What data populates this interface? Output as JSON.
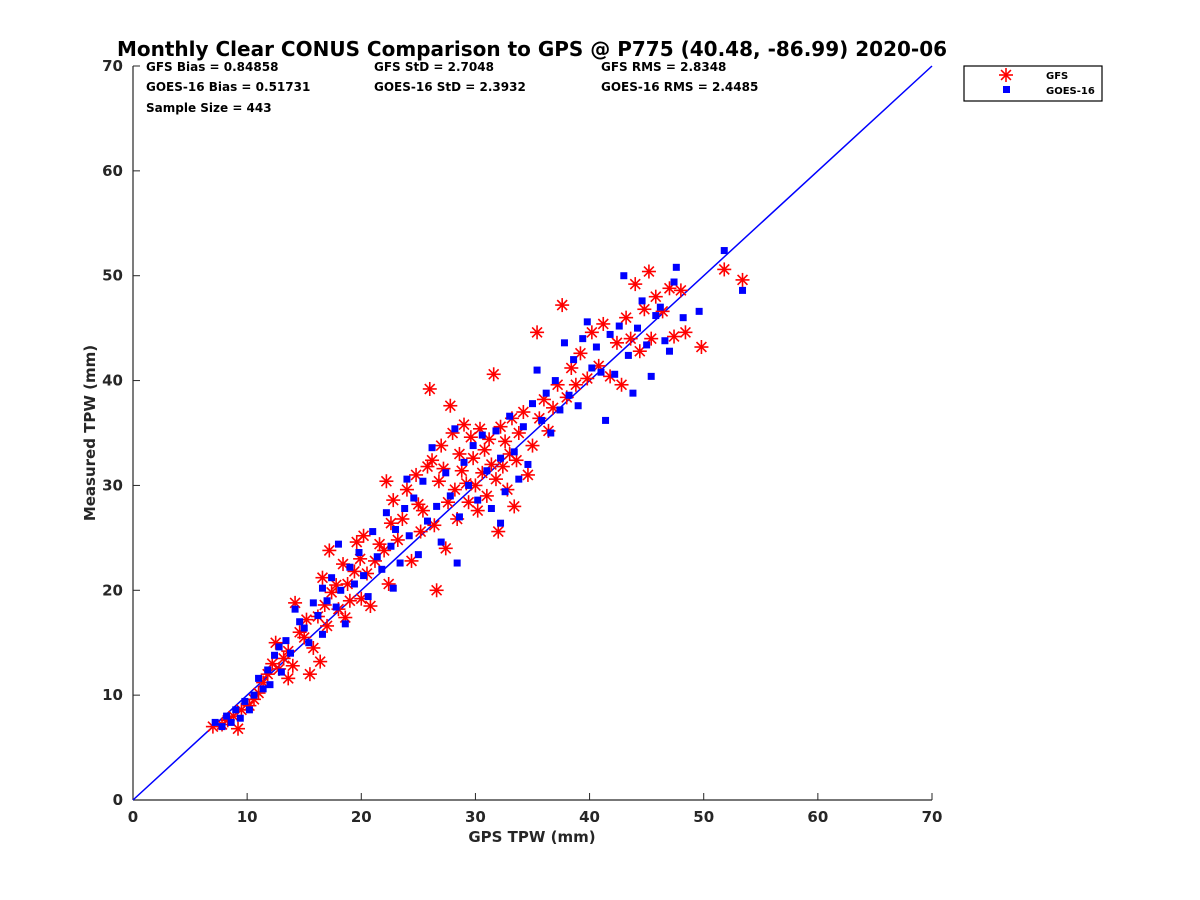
{
  "chart_data": {
    "type": "scatter",
    "title": "Monthly Clear CONUS Comparison to GPS @ P775 (40.48, -86.99) 2020-06",
    "xlabel": "GPS TPW (mm)",
    "ylabel": "Measured TPW (mm)",
    "xlim": [
      0,
      70
    ],
    "ylim": [
      0,
      70
    ],
    "xticks": [
      0,
      10,
      20,
      30,
      40,
      50,
      60,
      70
    ],
    "yticks": [
      0,
      10,
      20,
      30,
      40,
      50,
      60,
      70
    ],
    "grid": false,
    "legend_position": "top-right, outside plot",
    "stats": [
      {
        "label": "GFS Bias = 0.84858"
      },
      {
        "label": "GFS StD = 2.7048"
      },
      {
        "label": "GFS RMS = 2.8348"
      },
      {
        "label": "GOES-16 Bias = 0.51731"
      },
      {
        "label": "GOES-16 StD = 2.3932"
      },
      {
        "label": "GOES-16 RMS = 2.4485"
      },
      {
        "label": "Sample Size = 443"
      }
    ],
    "reference_line": {
      "x": [
        0,
        70
      ],
      "y": [
        0,
        70
      ],
      "color": "#0000ff"
    },
    "series": [
      {
        "name": "GFS",
        "marker": "asterisk",
        "color": "#ff0000",
        "points": [
          [
            7.0,
            7.0
          ],
          [
            7.8,
            7.2
          ],
          [
            8.3,
            7.6
          ],
          [
            8.8,
            8.0
          ],
          [
            9.2,
            6.8
          ],
          [
            9.5,
            8.6
          ],
          [
            10.2,
            9.0
          ],
          [
            10.6,
            9.6
          ],
          [
            11.0,
            10.2
          ],
          [
            11.4,
            11.2
          ],
          [
            11.8,
            12.0
          ],
          [
            12.2,
            13.0
          ],
          [
            12.5,
            15.0
          ],
          [
            12.8,
            12.5
          ],
          [
            13.2,
            13.5
          ],
          [
            13.6,
            14.2
          ],
          [
            14.0,
            12.8
          ],
          [
            14.2,
            18.8
          ],
          [
            14.6,
            16.0
          ],
          [
            15.0,
            15.5
          ],
          [
            15.2,
            17.2
          ],
          [
            15.5,
            12.0
          ],
          [
            15.8,
            14.5
          ],
          [
            16.2,
            17.5
          ],
          [
            16.6,
            21.2
          ],
          [
            16.8,
            18.6
          ],
          [
            17.0,
            16.6
          ],
          [
            17.4,
            19.8
          ],
          [
            17.8,
            20.5
          ],
          [
            18.0,
            18.2
          ],
          [
            18.4,
            22.5
          ],
          [
            18.8,
            20.6
          ],
          [
            19.0,
            19.0
          ],
          [
            19.4,
            21.8
          ],
          [
            19.6,
            24.6
          ],
          [
            19.9,
            23.0
          ],
          [
            20.2,
            25.2
          ],
          [
            20.5,
            21.6
          ],
          [
            20.8,
            18.5
          ],
          [
            21.2,
            22.8
          ],
          [
            21.6,
            24.4
          ],
          [
            22.0,
            23.8
          ],
          [
            22.4,
            20.6
          ],
          [
            22.6,
            26.4
          ],
          [
            22.8,
            28.6
          ],
          [
            23.2,
            24.8
          ],
          [
            23.6,
            26.8
          ],
          [
            24.0,
            29.6
          ],
          [
            24.4,
            22.8
          ],
          [
            24.8,
            31.0
          ],
          [
            25.0,
            28.2
          ],
          [
            25.2,
            25.6
          ],
          [
            25.4,
            27.6
          ],
          [
            25.8,
            31.8
          ],
          [
            26.0,
            39.2
          ],
          [
            26.2,
            32.4
          ],
          [
            26.4,
            26.2
          ],
          [
            26.6,
            20.0
          ],
          [
            26.8,
            30.4
          ],
          [
            27.0,
            33.8
          ],
          [
            27.2,
            31.6
          ],
          [
            27.4,
            24.0
          ],
          [
            27.6,
            28.4
          ],
          [
            27.8,
            37.6
          ],
          [
            28.0,
            35.0
          ],
          [
            28.2,
            29.6
          ],
          [
            28.4,
            26.8
          ],
          [
            28.6,
            33.0
          ],
          [
            28.8,
            31.4
          ],
          [
            29.0,
            35.8
          ],
          [
            29.2,
            30.2
          ],
          [
            29.4,
            28.4
          ],
          [
            29.6,
            34.6
          ],
          [
            29.8,
            32.6
          ],
          [
            30.0,
            30.0
          ],
          [
            30.2,
            27.6
          ],
          [
            30.4,
            35.4
          ],
          [
            30.6,
            31.2
          ],
          [
            30.8,
            33.4
          ],
          [
            31.0,
            29.0
          ],
          [
            31.2,
            34.4
          ],
          [
            31.4,
            32.0
          ],
          [
            31.6,
            40.6
          ],
          [
            31.8,
            30.6
          ],
          [
            32.0,
            25.6
          ],
          [
            32.2,
            35.6
          ],
          [
            32.4,
            31.8
          ],
          [
            32.6,
            34.2
          ],
          [
            32.8,
            29.6
          ],
          [
            33.0,
            33.0
          ],
          [
            33.2,
            36.4
          ],
          [
            33.4,
            28.0
          ],
          [
            33.6,
            32.4
          ],
          [
            33.8,
            35.0
          ],
          [
            34.2,
            37.0
          ],
          [
            34.6,
            31.0
          ],
          [
            35.0,
            33.8
          ],
          [
            35.4,
            44.6
          ],
          [
            35.6,
            36.4
          ],
          [
            36.0,
            38.2
          ],
          [
            36.4,
            35.2
          ],
          [
            36.8,
            37.4
          ],
          [
            37.2,
            39.6
          ],
          [
            37.6,
            47.2
          ],
          [
            38.0,
            38.4
          ],
          [
            38.4,
            41.2
          ],
          [
            38.8,
            39.6
          ],
          [
            39.2,
            42.6
          ],
          [
            39.8,
            40.2
          ],
          [
            40.2,
            44.6
          ],
          [
            40.8,
            41.4
          ],
          [
            41.2,
            45.4
          ],
          [
            41.8,
            40.4
          ],
          [
            42.4,
            43.6
          ],
          [
            42.8,
            39.6
          ],
          [
            43.2,
            46.0
          ],
          [
            43.6,
            44.0
          ],
          [
            44.0,
            49.2
          ],
          [
            44.4,
            42.8
          ],
          [
            44.8,
            46.8
          ],
          [
            45.2,
            50.4
          ],
          [
            45.4,
            44.0
          ],
          [
            45.8,
            48.0
          ],
          [
            46.4,
            46.6
          ],
          [
            47.0,
            48.8
          ],
          [
            47.4,
            44.2
          ],
          [
            48.0,
            48.6
          ],
          [
            48.4,
            44.6
          ],
          [
            49.8,
            43.2
          ],
          [
            51.8,
            50.6
          ],
          [
            53.4,
            49.6
          ],
          [
            22.2,
            30.4
          ],
          [
            20.0,
            19.2
          ],
          [
            17.2,
            23.8
          ],
          [
            18.6,
            17.4
          ],
          [
            13.6,
            11.6
          ],
          [
            16.4,
            13.2
          ]
        ]
      },
      {
        "name": "GOES-16",
        "marker": "square",
        "color": "#0000ff",
        "points": [
          [
            7.2,
            7.4
          ],
          [
            7.8,
            7.0
          ],
          [
            8.2,
            8.0
          ],
          [
            8.6,
            7.4
          ],
          [
            9.0,
            8.6
          ],
          [
            9.4,
            7.8
          ],
          [
            9.8,
            9.4
          ],
          [
            10.2,
            8.6
          ],
          [
            10.6,
            10.0
          ],
          [
            11.0,
            11.6
          ],
          [
            11.4,
            10.6
          ],
          [
            11.8,
            12.4
          ],
          [
            12.0,
            11.0
          ],
          [
            12.4,
            13.8
          ],
          [
            12.8,
            14.6
          ],
          [
            13.0,
            12.2
          ],
          [
            13.4,
            15.2
          ],
          [
            13.8,
            14.0
          ],
          [
            14.2,
            18.2
          ],
          [
            14.6,
            17.0
          ],
          [
            15.0,
            16.4
          ],
          [
            15.4,
            15.0
          ],
          [
            15.8,
            18.8
          ],
          [
            16.2,
            17.6
          ],
          [
            16.6,
            20.2
          ],
          [
            17.0,
            19.0
          ],
          [
            17.4,
            21.2
          ],
          [
            17.8,
            18.4
          ],
          [
            18.2,
            20.0
          ],
          [
            18.6,
            16.8
          ],
          [
            19.0,
            22.2
          ],
          [
            19.4,
            20.6
          ],
          [
            19.8,
            23.6
          ],
          [
            20.2,
            21.4
          ],
          [
            20.6,
            19.4
          ],
          [
            21.0,
            25.6
          ],
          [
            21.4,
            23.2
          ],
          [
            21.8,
            22.0
          ],
          [
            22.2,
            27.4
          ],
          [
            22.6,
            24.2
          ],
          [
            23.0,
            25.8
          ],
          [
            23.4,
            22.6
          ],
          [
            23.8,
            27.8
          ],
          [
            24.2,
            25.2
          ],
          [
            24.6,
            28.8
          ],
          [
            25.0,
            23.4
          ],
          [
            25.4,
            30.4
          ],
          [
            25.8,
            26.6
          ],
          [
            26.2,
            33.6
          ],
          [
            26.6,
            28.0
          ],
          [
            27.0,
            24.6
          ],
          [
            27.4,
            31.2
          ],
          [
            27.8,
            29.0
          ],
          [
            28.2,
            35.4
          ],
          [
            28.6,
            27.0
          ],
          [
            29.0,
            32.2
          ],
          [
            29.4,
            30.0
          ],
          [
            29.8,
            33.8
          ],
          [
            30.2,
            28.6
          ],
          [
            30.6,
            34.8
          ],
          [
            31.0,
            31.4
          ],
          [
            31.4,
            27.8
          ],
          [
            31.8,
            35.2
          ],
          [
            32.2,
            32.6
          ],
          [
            32.6,
            29.4
          ],
          [
            33.0,
            36.6
          ],
          [
            33.4,
            33.2
          ],
          [
            33.8,
            30.6
          ],
          [
            34.2,
            35.6
          ],
          [
            34.6,
            32.0
          ],
          [
            35.0,
            37.8
          ],
          [
            35.4,
            41.0
          ],
          [
            35.8,
            36.2
          ],
          [
            36.2,
            38.8
          ],
          [
            36.6,
            35.0
          ],
          [
            37.0,
            40.0
          ],
          [
            37.4,
            37.2
          ],
          [
            37.8,
            43.6
          ],
          [
            38.2,
            38.6
          ],
          [
            38.6,
            42.0
          ],
          [
            39.0,
            37.6
          ],
          [
            39.4,
            44.0
          ],
          [
            39.8,
            45.6
          ],
          [
            40.2,
            41.2
          ],
          [
            40.6,
            43.2
          ],
          [
            41.0,
            40.8
          ],
          [
            41.4,
            36.2
          ],
          [
            41.8,
            44.4
          ],
          [
            42.2,
            40.6
          ],
          [
            42.6,
            45.2
          ],
          [
            43.0,
            50.0
          ],
          [
            43.4,
            42.4
          ],
          [
            43.8,
            38.8
          ],
          [
            44.2,
            45.0
          ],
          [
            44.6,
            47.6
          ],
          [
            45.0,
            43.4
          ],
          [
            45.4,
            40.4
          ],
          [
            45.8,
            46.2
          ],
          [
            46.2,
            47.0
          ],
          [
            46.6,
            43.8
          ],
          [
            47.0,
            42.8
          ],
          [
            47.4,
            49.4
          ],
          [
            47.6,
            50.8
          ],
          [
            48.2,
            46.0
          ],
          [
            49.6,
            46.6
          ],
          [
            51.8,
            52.4
          ],
          [
            53.4,
            48.6
          ],
          [
            24.0,
            30.6
          ],
          [
            22.8,
            20.2
          ],
          [
            28.4,
            22.6
          ],
          [
            32.2,
            26.4
          ],
          [
            16.6,
            15.8
          ],
          [
            18.0,
            24.4
          ]
        ]
      }
    ]
  }
}
